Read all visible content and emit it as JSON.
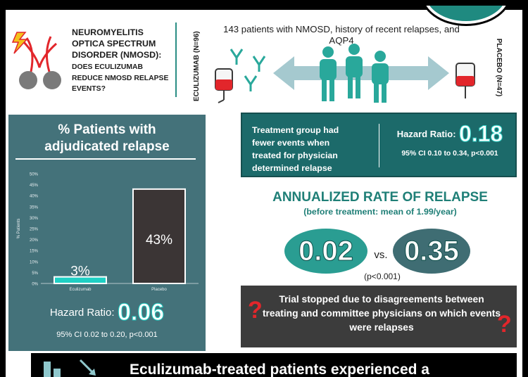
{
  "header": {
    "title": "NEUROMYELITIS OPTICA SPECTRUM DISORDER (NMOSD):",
    "question": "DOES ECULIZUMAB REDUCE NMOSD RELAPSE EVENTS?",
    "arm_left": "ECULIZUMAB (N=96)",
    "arm_right": "PLACEBO (N=47)",
    "description": "143 patients with NMOSD, history of recent relapses, and AQP4"
  },
  "left_panel": {
    "title_line1": "% Patients with",
    "title_line2": "adjudicated relapse",
    "hr_label": "Hazard Ratio:",
    "hr_value": "0.06",
    "hr_ci": "95% CI 0.02 to 0.20, p<0.001"
  },
  "chart_data": {
    "type": "bar",
    "title": "% Patients with adjudicated relapse",
    "categories": [
      "Eculizumab",
      "Placebo"
    ],
    "values": [
      3,
      43
    ],
    "value_labels": [
      "3%",
      "43%"
    ],
    "ylabel": "% Patients",
    "ylim": [
      0,
      50
    ],
    "yticks": [
      "0%",
      "5%",
      "10%",
      "15%",
      "20%",
      "25%",
      "30%",
      "35%",
      "40%",
      "45%",
      "50%"
    ],
    "colors": [
      "#1fd0c4",
      "#3b3535"
    ],
    "grid": false
  },
  "hazard_box": {
    "text": "Treatment group had fewer events when treated for physician determined relapse",
    "label": "Hazard Ratio:",
    "value": "0.18",
    "ci": "95% CI 0.10 to 0.34, p<0.001"
  },
  "annualized": {
    "title": "ANNUALIZED RATE OF RELAPSE",
    "subtitle": "(before treatment: mean of 1.99/year)",
    "value_a": "0.02",
    "vs": "vs.",
    "value_b": "0.35",
    "p": "(p<0.001)"
  },
  "trial": {
    "text": "Trial stopped due to disagreements between treating and committee physicians on which events were relapses",
    "mark": "?"
  },
  "bottom": {
    "text": "Eculizumab-treated patients experienced a"
  },
  "colors": {
    "teal": "#1f8a80",
    "dark_teal": "#1c6a6a",
    "slate": "#44727a",
    "accent_red": "#e2262b",
    "arrow": "#a5c9cf",
    "people": "#29a89b"
  }
}
